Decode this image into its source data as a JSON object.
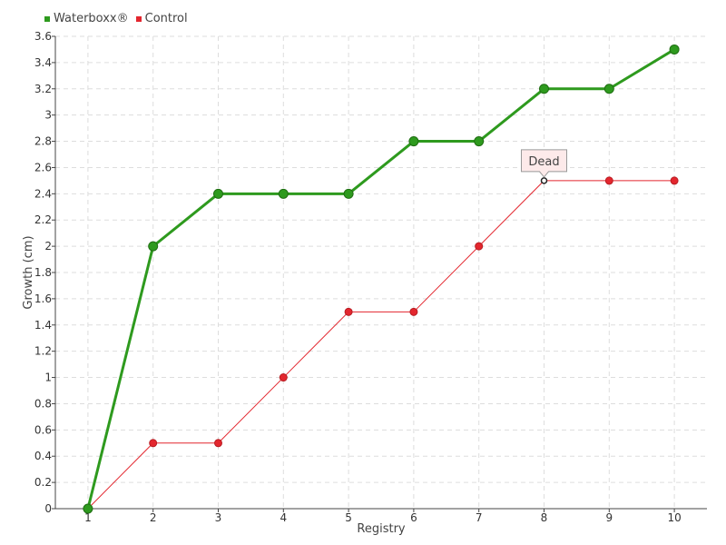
{
  "chart_data": {
    "type": "line",
    "x": [
      1,
      2,
      3,
      4,
      5,
      6,
      7,
      8,
      9,
      10
    ],
    "xlabel": "Registry",
    "ylabel": "Growth (cm)",
    "ylim": [
      0,
      36
    ],
    "y_ticks": [
      {
        "value": 0,
        "label": "0"
      },
      {
        "value": 2,
        "label": "0.2"
      },
      {
        "value": 4,
        "label": "0.4"
      },
      {
        "value": 6,
        "label": "0.6"
      },
      {
        "value": 8,
        "label": "0.8"
      },
      {
        "value": 10,
        "label": "1"
      },
      {
        "value": 12,
        "label": "1.2"
      },
      {
        "value": 14,
        "label": "1.4"
      },
      {
        "value": 16,
        "label": "1.6"
      },
      {
        "value": 18,
        "label": "1.8"
      },
      {
        "value": 20,
        "label": "2"
      },
      {
        "value": 22,
        "label": "2.2"
      },
      {
        "value": 24,
        "label": "2.4"
      },
      {
        "value": 26,
        "label": "2.6"
      },
      {
        "value": 28,
        "label": "2.8"
      },
      {
        "value": 30,
        "label": "3"
      },
      {
        "value": 32,
        "label": "3.2"
      },
      {
        "value": 34,
        "label": "3.4"
      },
      {
        "value": 36,
        "label": "3.6"
      }
    ],
    "x_tick_labels": [
      "1",
      "2",
      "3",
      "4",
      "5",
      "6",
      "7",
      "8",
      "9",
      "10"
    ],
    "grid": true,
    "legend_position": "top-left",
    "series": [
      {
        "name": "Waterboxx®",
        "color": "#2e9a1e",
        "values": [
          0,
          20,
          24,
          24,
          24,
          28,
          28,
          32,
          32,
          35
        ]
      },
      {
        "name": "Control",
        "color": "#e3262e",
        "values": [
          0,
          5,
          5,
          10,
          15,
          15,
          20,
          25,
          25,
          25
        ]
      }
    ],
    "annotations": [
      {
        "text": "Dead",
        "series": 1,
        "x": 8
      }
    ]
  }
}
